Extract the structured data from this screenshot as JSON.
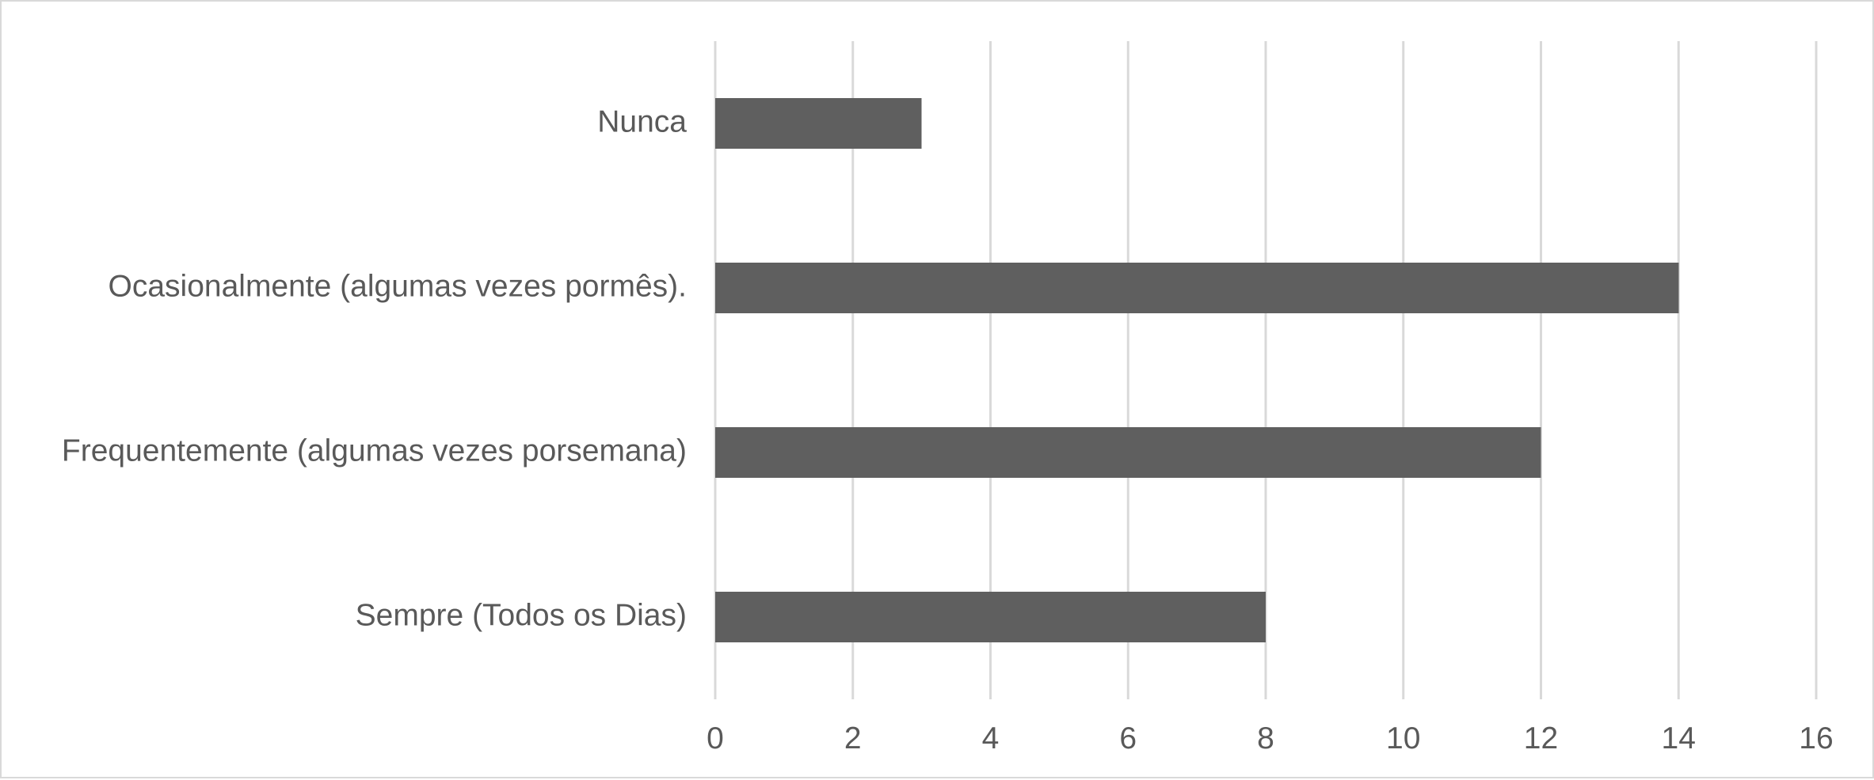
{
  "chart_data": {
    "type": "bar",
    "orientation": "horizontal",
    "categories": [
      "Nunca",
      "Ocasionalmente (algumas vezes pormês).",
      "Frequentemente (algumas vezes porsemana)",
      "Sempre (Todos os Dias)"
    ],
    "values": [
      3,
      14,
      12,
      8
    ],
    "title": "",
    "xlabel": "",
    "ylabel": "",
    "xlim": [
      0,
      16
    ],
    "xticks": [
      0,
      2,
      4,
      6,
      8,
      10,
      12,
      14,
      16
    ],
    "tick_labels": [
      "0",
      "2",
      "4",
      "6",
      "8",
      "10",
      "12",
      "14",
      "16"
    ],
    "grid": "vertical",
    "legend": "none",
    "bar_color": "#5f5f5f",
    "grid_color": "#d9d9d9",
    "text_color": "#595959"
  }
}
